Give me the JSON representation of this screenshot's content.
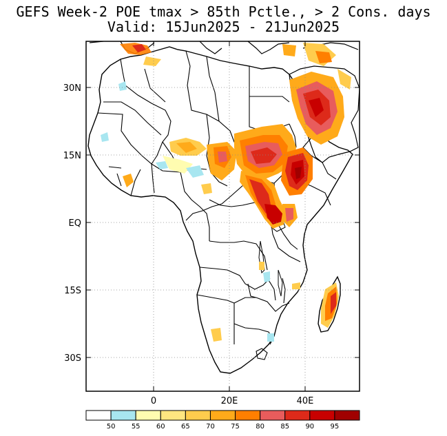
{
  "title": {
    "line1": "GEFS Week-2 POE tmax > 85th Pctle., > 2 Cons. days",
    "line2": "Valid: 15Jun2025 - 21Jun2025"
  },
  "axes": {
    "lat_labels": [
      "30N",
      "15N",
      "EQ",
      "15S",
      "30S"
    ],
    "lon_labels": [
      "0",
      "20E",
      "40E"
    ]
  },
  "colorbar": {
    "colors": [
      "#ffffff",
      "#a8e6f0",
      "#fffcb0",
      "#ffe680",
      "#ffcc4d",
      "#ffaa1a",
      "#ff7f00",
      "#e85c5c",
      "#dd2a1a",
      "#c80000",
      "#a00000"
    ],
    "labels": [
      "50",
      "55",
      "60",
      "65",
      "70",
      "75",
      "80",
      "85",
      "90",
      "95"
    ]
  },
  "colors": {
    "outline": "#000000",
    "grid": "#888888"
  }
}
